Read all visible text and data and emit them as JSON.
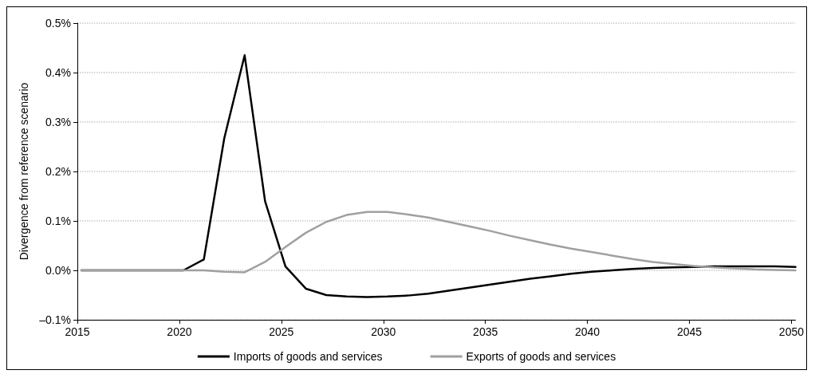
{
  "chart_data": {
    "type": "line",
    "ylabel": "Divergence from reference scenario",
    "x": [
      2015.2,
      2016.2,
      2017.2,
      2018.2,
      2019.2,
      2020.2,
      2021.2,
      2022.2,
      2023.2,
      2024.2,
      2025.2,
      2026.2,
      2027.2,
      2028.2,
      2029.2,
      2030.2,
      2031.2,
      2032.2,
      2033.2,
      2034.2,
      2035.2,
      2036.2,
      2037.2,
      2038.2,
      2039.2,
      2040.2,
      2041.2,
      2042.2,
      2043.2,
      2044.2,
      2045.2,
      2046.2,
      2047.2,
      2048.2,
      2049.2,
      2050.2
    ],
    "series": [
      {
        "name": "Imports of goods and services",
        "color": "#000000",
        "values": [
          0,
          0,
          0,
          0,
          0,
          0,
          0.022,
          0.267,
          0.435,
          0.14,
          0.008,
          -0.037,
          -0.05,
          -0.053,
          -0.054,
          -0.053,
          -0.051,
          -0.047,
          -0.041,
          -0.035,
          -0.029,
          -0.023,
          -0.017,
          -0.012,
          -0.007,
          -0.003,
          0,
          0.003,
          0.005,
          0.006,
          0.007,
          0.008,
          0.008,
          0.008,
          0.008,
          0.007
        ]
      },
      {
        "name": "Exports of goods and services",
        "color": "#a0a0a0",
        "values": [
          0,
          0,
          0,
          0,
          0,
          0,
          0,
          -0.003,
          -0.004,
          0.017,
          0.047,
          0.076,
          0.098,
          0.112,
          0.118,
          0.118,
          0.113,
          0.107,
          0.098,
          0.089,
          0.08,
          0.07,
          0.061,
          0.052,
          0.044,
          0.037,
          0.03,
          0.023,
          0.017,
          0.013,
          0.009,
          0.006,
          0.004,
          0.002,
          0.001,
          0
        ]
      }
    ],
    "xlim": [
      2015,
      2050.2
    ],
    "xticks": [
      2015,
      2020,
      2025,
      2030,
      2035,
      2040,
      2045,
      2050
    ],
    "ylim": [
      -0.1,
      0.5
    ],
    "yticks": [
      {
        "value": -0.1,
        "label": "–0.1%"
      },
      {
        "value": 0,
        "label": "0.0%"
      },
      {
        "value": 0.1,
        "label": "0.1%"
      },
      {
        "value": 0.2,
        "label": "0.2%"
      },
      {
        "value": 0.3,
        "label": "0.3%"
      },
      {
        "value": 0.4,
        "label": "0.4%"
      },
      {
        "value": 0.5,
        "label": "0.5%"
      }
    ],
    "grid": "y",
    "legend": "bottom",
    "marker": "none",
    "line_style": "solid"
  }
}
